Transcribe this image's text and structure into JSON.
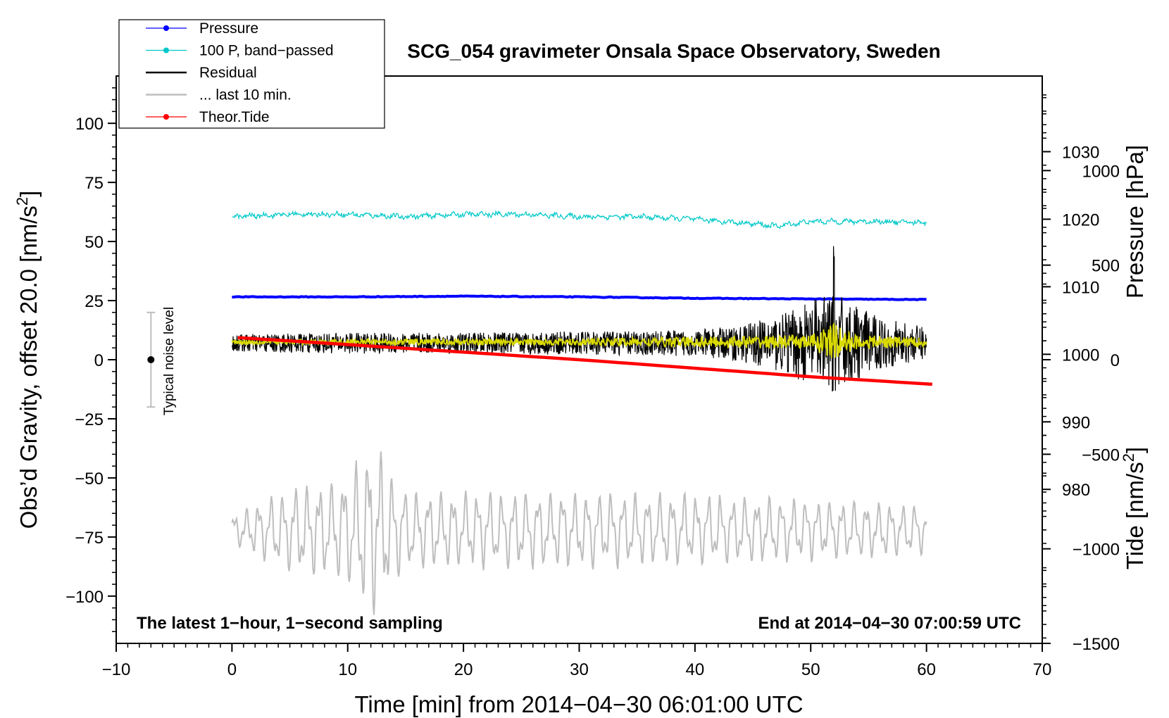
{
  "chart_data": {
    "type": "line",
    "title": "SCG_054 gravimeter Onsala Space Observatory, Sweden",
    "xlabel": "Time [min] from 2014−04−30 06:01:00 UTC",
    "ylabel_left": "Obs’d Gravity, offset 20.0 [nm/s²]",
    "ylabel_left_main": "Obs’d Gravity, offset 20.0 [nm/s",
    "ylabel_left_sup": "2",
    "ylabel_left_end": "]",
    "ylabel_right_top": "Pressure [hPa]",
    "ylabel_right_bottom": "Tide [nm/s²]",
    "ylabel_right_bottom_main": "Tide [nm/s",
    "ylabel_right_bottom_sup": "2",
    "ylabel_right_bottom_end": "]",
    "xlim": [
      -10,
      70
    ],
    "ylim": [
      -120,
      120
    ],
    "pressure_lim": [
      957.2,
      1041.2
    ],
    "tide_lim": [
      -1500,
      1500
    ],
    "x_ticks": [
      -10,
      0,
      10,
      20,
      30,
      40,
      50,
      60,
      70
    ],
    "x_tick_labels": [
      "−10",
      "0",
      "10",
      "20",
      "30",
      "40",
      "50",
      "60",
      "70"
    ],
    "y_ticks": [
      100,
      75,
      50,
      25,
      0,
      -25,
      -50,
      -75,
      -100
    ],
    "y_tick_labels": [
      "100",
      "75",
      "50",
      "25",
      "0",
      "−25",
      "−50",
      "−75",
      "−100"
    ],
    "pressure_ticks": [
      1030,
      1020,
      1010,
      1000,
      990,
      980
    ],
    "pressure_tick_labels": [
      "1030",
      "1020",
      "1010",
      "1000",
      "990",
      "980"
    ],
    "tide_ticks": [
      1000,
      500,
      0,
      -500,
      -1000,
      -1500
    ],
    "tide_tick_labels": [
      "1000",
      "500",
      "0",
      "−500",
      "−1000",
      "−1500"
    ],
    "annotation_left": "The latest 1−hour, 1−second sampling",
    "annotation_right": "End at 2014−04−30 07:00:59 UTC",
    "noise_label": "Typical noise level",
    "noise_bar": {
      "x": -7,
      "center": 0,
      "half_range": 20
    },
    "legend": [
      {
        "label": "Pressure",
        "color": "#0000ff",
        "style": "dot-line"
      },
      {
        "label": "100 P, band−passed",
        "color": "#00c8c8",
        "style": "dot-line"
      },
      {
        "label": "Residual",
        "color": "#000000",
        "style": "line"
      },
      {
        "label": "... last 10 min.",
        "color": "#bebebe",
        "style": "line"
      },
      {
        "label": "Theor.Tide",
        "color": "#ff0000",
        "style": "dot-line"
      }
    ],
    "series": [
      {
        "name": "Pressure",
        "axis": "pressure",
        "color": "#0000ff",
        "x": [
          0,
          10,
          20,
          30,
          40,
          50,
          60
        ],
        "values": [
          1008.5,
          1008.5,
          1008.6,
          1008.5,
          1008.3,
          1008.2,
          1008.1
        ]
      },
      {
        "name": "100 P, band−passed",
        "axis": "left",
        "color": "#00c8c8",
        "x": [
          0,
          5,
          10,
          15,
          20,
          25,
          30,
          35,
          40,
          45,
          47,
          50,
          55,
          60
        ],
        "values": [
          60.5,
          61.5,
          61.5,
          60.5,
          61.5,
          61.5,
          60.5,
          60.5,
          59.5,
          57.5,
          56.5,
          58.5,
          58.5,
          58.0
        ]
      },
      {
        "name": "Residual",
        "axis": "left",
        "color": "#000000",
        "x": [
          0,
          10,
          20,
          30,
          40,
          44,
          48,
          50,
          52,
          54,
          56,
          58,
          60
        ],
        "amplitude": [
          3.5,
          4,
          4,
          4.5,
          5,
          7,
          12,
          16,
          20,
          14,
          10,
          8,
          6
        ],
        "offset": 7
      },
      {
        "name": "... last 10 min.",
        "axis": "left",
        "color": "#bebebe",
        "x": [
          0,
          2,
          4,
          6,
          8,
          10,
          12,
          13,
          14,
          16,
          20,
          30,
          40,
          50,
          60
        ],
        "amplitude": [
          6,
          10,
          15,
          18,
          18,
          22,
          35,
          30,
          20,
          15,
          15,
          15,
          14,
          12,
          10
        ],
        "center": -72
      },
      {
        "name": "Yellow smoothed residual",
        "axis": "left",
        "color": "#dada00",
        "x": [
          0,
          30,
          50,
          52,
          54,
          60
        ],
        "amplitude": [
          1,
          1.5,
          3,
          8,
          3,
          2
        ],
        "offset": 7.5
      },
      {
        "name": "Theor.Tide",
        "axis": "tide",
        "color": "#ff0000",
        "x": [
          0.5,
          10,
          20,
          30,
          40,
          50,
          60.5
        ],
        "values": [
          117,
          80,
          40,
          0,
          -45,
          -90,
          -130
        ]
      }
    ]
  }
}
